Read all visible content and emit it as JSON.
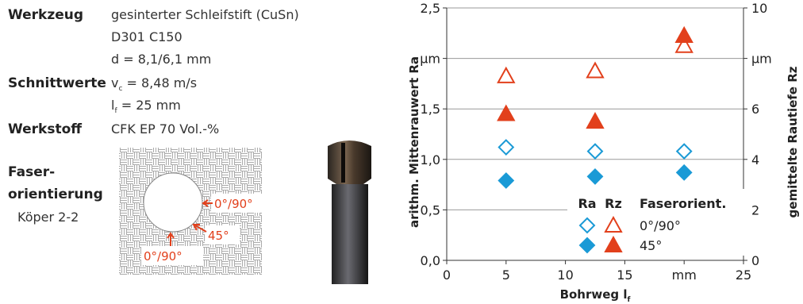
{
  "left": {
    "rows": [
      {
        "label": "Werkzeug",
        "lines": [
          {
            "text": "gesinterter Schleifstift (CuSn)"
          },
          {
            "text": "D301 C150"
          },
          {
            "text": "d = 8,1/6,1 mm"
          }
        ]
      },
      {
        "label": "Schnittwerte",
        "lines": [
          {
            "symbol": "v",
            "sub": "c",
            "text": " = 8,48 m/s"
          },
          {
            "symbol": "l",
            "sub": "f",
            "text": " = 25 mm"
          }
        ]
      },
      {
        "label": "Werkstoff",
        "lines": [
          {
            "text": "CFK EP 70 Vol.-%"
          }
        ]
      }
    ],
    "fiber": {
      "label": [
        "Faser-",
        "orientierung"
      ],
      "weave": "Köper 2-2",
      "annotations": [
        "0°/90°",
        "45°",
        "0°/90°"
      ]
    }
  },
  "chart_data": {
    "type": "scatter",
    "y_label": "arithm. Mittenrauwert Ra",
    "y2_label": "gemittelte Rautiefe Rz",
    "x_label": {
      "text": "Bohrweg l",
      "sub": "f"
    },
    "x": [
      5,
      12.5,
      20
    ],
    "xlim": [
      0,
      25
    ],
    "xticks": [
      0,
      5,
      10,
      15,
      {
        "value": 20,
        "label": "mm"
      },
      25
    ],
    "ylim": [
      0,
      2.5
    ],
    "yticks": [
      {
        "value": 0,
        "label": "0,0"
      },
      {
        "value": 0.5,
        "label": "0,5"
      },
      {
        "value": 1,
        "label": "1,0"
      },
      {
        "value": 1.5,
        "label": "1,5"
      },
      {
        "value": 2,
        "label": "µm"
      },
      {
        "value": 2.5,
        "label": "2,5"
      }
    ],
    "y2lim": [
      0,
      10
    ],
    "y2ticks": [
      0,
      2,
      4,
      6,
      {
        "value": 8,
        "label": "µm"
      },
      10
    ],
    "grid": true,
    "legend": {
      "columns": [
        "Ra",
        "Rz",
        "Faserorient."
      ],
      "rows": [
        "0°/90°",
        "45°"
      ]
    },
    "series": [
      {
        "marker": "diamond",
        "filled": false,
        "color": "#1a9ad6",
        "values": [
          1.12,
          1.08,
          1.08
        ]
      },
      {
        "marker": "triangle",
        "filled": false,
        "color": "#e2401c",
        "axis": "y2",
        "values": [
          7.3,
          7.5,
          8.5
        ]
      },
      {
        "marker": "diamond",
        "filled": true,
        "color": "#1a9ad6",
        "values": [
          0.79,
          0.83,
          0.87
        ]
      },
      {
        "marker": "triangle",
        "filled": true,
        "color": "#e2401c",
        "axis": "y2",
        "values": [
          5.8,
          5.5,
          8.9
        ]
      }
    ]
  }
}
